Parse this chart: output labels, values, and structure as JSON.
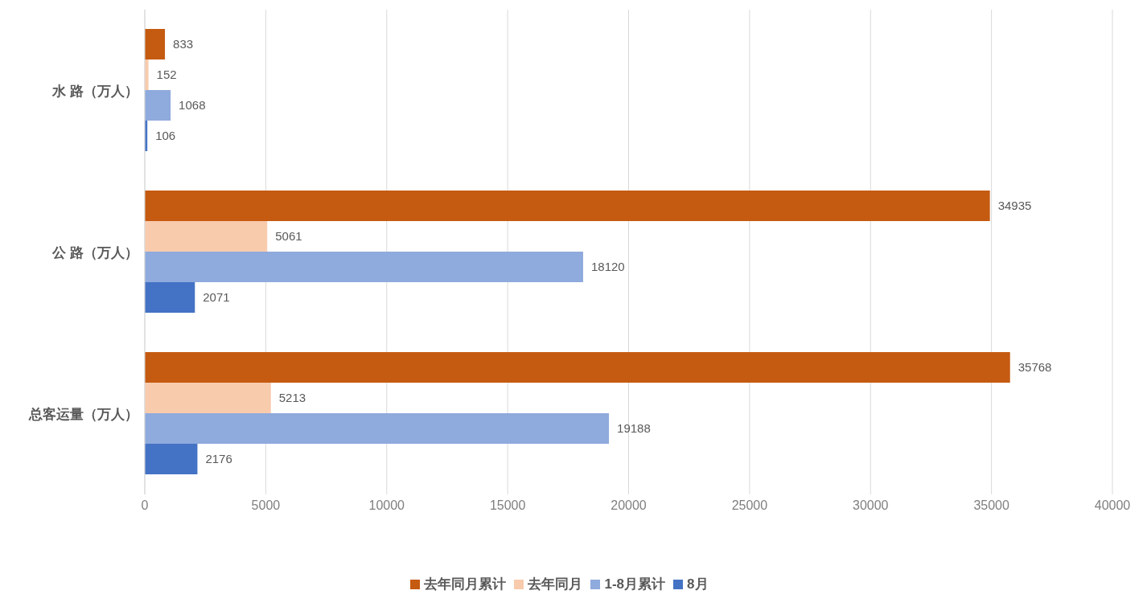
{
  "chart_data": {
    "type": "bar",
    "orientation": "horizontal",
    "categories": [
      "水 路（万人）",
      "公 路（万人）",
      "总客运量（万人）"
    ],
    "series": [
      {
        "name": "去年同月累计",
        "color": "#c55a11",
        "values": [
          833,
          34935,
          35768
        ]
      },
      {
        "name": "去年同月",
        "color": "#f8cbad",
        "values": [
          152,
          5061,
          5213
        ]
      },
      {
        "name": "1-8月累计",
        "color": "#8faadc",
        "values": [
          1068,
          18120,
          19188
        ]
      },
      {
        "name": "8月",
        "color": "#4472c4",
        "values": [
          106,
          2071,
          2176
        ]
      }
    ],
    "xlim": [
      0,
      40000
    ],
    "xticks": [
      0,
      5000,
      10000,
      15000,
      20000,
      25000,
      30000,
      35000,
      40000
    ],
    "grid": "x",
    "legend": "bottom",
    "data_labels": true
  }
}
